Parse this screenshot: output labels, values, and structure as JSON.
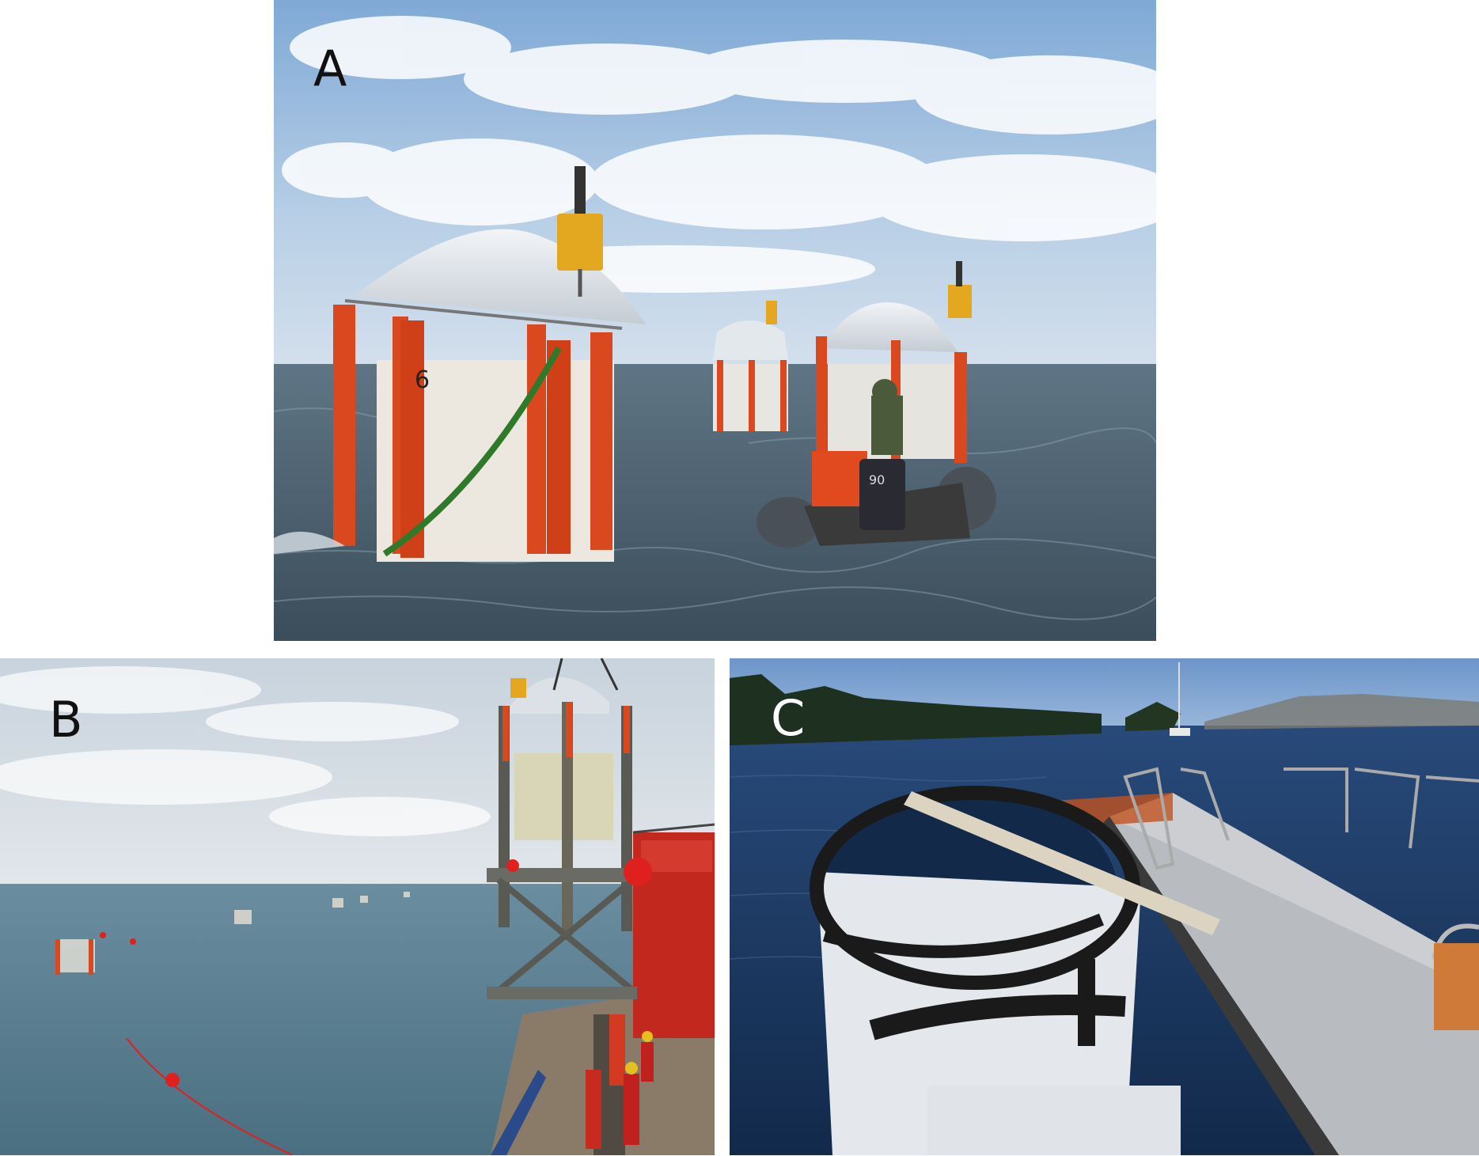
{
  "figure": {
    "panels": [
      {
        "id": "A",
        "label": "A",
        "description_icon": "mesocosm-at-sea-photo"
      },
      {
        "id": "B",
        "label": "B",
        "description_icon": "mesocosm-deployment-photo"
      },
      {
        "id": "C",
        "label": "C",
        "description_icon": "floating-bag-at-pier-photo"
      }
    ],
    "cage_number": "6",
    "outboard_text": "90"
  },
  "colors": {
    "sky": "#9fbfdc",
    "sea": "#4f6675",
    "mesocosm_orange": "#d9481e",
    "buoy_red": "#e0201e",
    "fjord_blue": "#1d3d6a"
  }
}
